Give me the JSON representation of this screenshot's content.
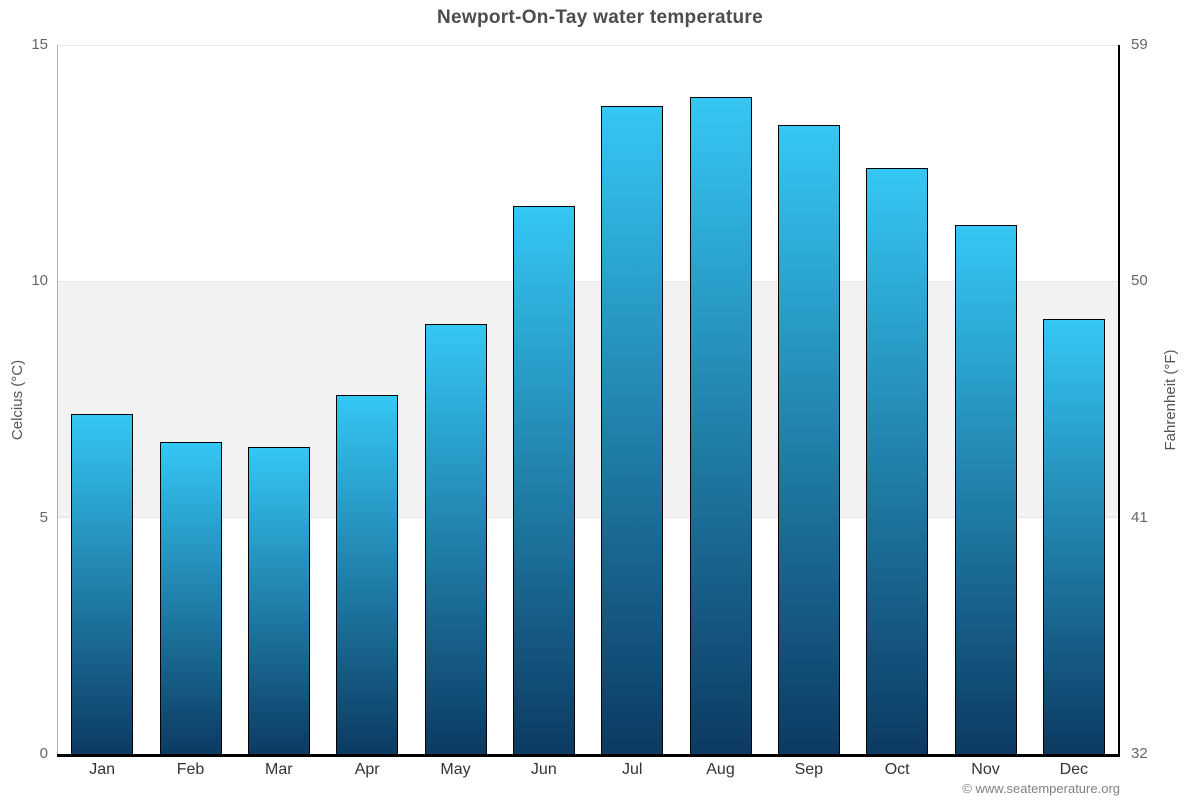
{
  "title": "Newport-On-Tay water temperature",
  "copyright": "© www.seatemperature.org",
  "colors": {
    "bar_gradient_top": "#35c7f4",
    "bar_gradient_bottom": "#0c3a62",
    "bar_border": "#000000",
    "plot_band": "#f2f2f2",
    "gridline": "#e6e6e6",
    "axis_left_line": "#b0b0b0",
    "axis_right_line": "#000000",
    "axis_bottom_line": "#000000",
    "title_text": "#4d4d4d",
    "tick_text": "#666666",
    "month_text": "#333333",
    "copyright_text": "#808080"
  },
  "chart_data": {
    "type": "bar",
    "title": "Newport-On-Tay water temperature",
    "categories": [
      "Jan",
      "Feb",
      "Mar",
      "Apr",
      "May",
      "Jun",
      "Jul",
      "Aug",
      "Sep",
      "Oct",
      "Nov",
      "Dec"
    ],
    "values": [
      7.2,
      6.6,
      6.5,
      7.6,
      9.1,
      11.6,
      13.7,
      13.9,
      13.3,
      12.4,
      11.2,
      9.2
    ],
    "series_name": "Water temperature (°C)",
    "xlabel": "",
    "ylabel_left": "Celcius (°C)",
    "ylabel_right": "Fahrenheit (°F)",
    "ylim": [
      0,
      15
    ],
    "yticks_left": [
      0,
      5,
      10,
      15
    ],
    "yticks_right": [
      32,
      41,
      50,
      59
    ],
    "plot_band": {
      "from": 5,
      "to": 10
    },
    "grid": "top-line-plus-band",
    "legend": "none"
  }
}
